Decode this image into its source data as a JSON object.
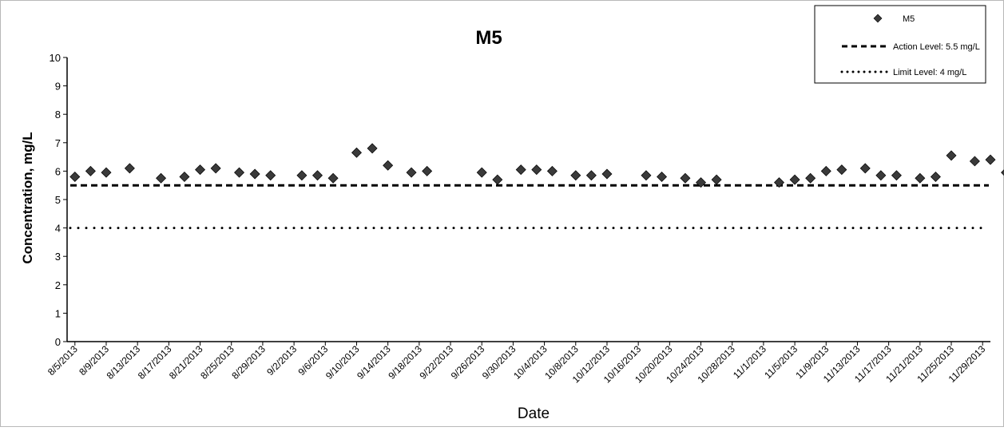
{
  "chart_data": {
    "type": "scatter",
    "title": "M5",
    "xlabel": "Date",
    "ylabel": "Concentration, mg/L",
    "ylim": [
      0,
      10
    ],
    "yticks": [
      "0",
      "1",
      "2",
      "3",
      "4",
      "5",
      "6",
      "7",
      "8",
      "9",
      "10"
    ],
    "xlim": [
      "8/4/2013",
      "11/30/2013"
    ],
    "xtick_labels": [
      "8/5/2013",
      "8/9/2013",
      "8/13/2013",
      "8/17/2013",
      "8/21/2013",
      "8/25/2013",
      "8/29/2013",
      "9/2/2013",
      "9/6/2013",
      "9/10/2013",
      "9/14/2013",
      "9/18/2013",
      "9/22/2013",
      "9/26/2013",
      "9/30/2013",
      "10/4/2013",
      "10/8/2013",
      "10/12/2013",
      "10/16/2013",
      "10/20/2013",
      "10/24/2013",
      "10/28/2013",
      "11/1/2013",
      "11/5/2013",
      "11/9/2013",
      "11/13/2013",
      "11/17/2013",
      "11/21/2013",
      "11/25/2013",
      "11/29/2013"
    ],
    "grid": false,
    "legend_position": "top-right",
    "series": [
      {
        "name": "M5",
        "marker": "diamond",
        "color": "#3a3a3a",
        "points": [
          {
            "x": "8/5/2013",
            "y": 5.8
          },
          {
            "x": "8/7/2013",
            "y": 6.0
          },
          {
            "x": "8/9/2013",
            "y": 5.95
          },
          {
            "x": "8/12/2013",
            "y": 6.1
          },
          {
            "x": "8/16/2013",
            "y": 5.75
          },
          {
            "x": "8/19/2013",
            "y": 5.8
          },
          {
            "x": "8/21/2013",
            "y": 6.05
          },
          {
            "x": "8/23/2013",
            "y": 6.1
          },
          {
            "x": "8/26/2013",
            "y": 5.95
          },
          {
            "x": "8/28/2013",
            "y": 5.9
          },
          {
            "x": "8/30/2013",
            "y": 5.85
          },
          {
            "x": "9/3/2013",
            "y": 5.85
          },
          {
            "x": "9/5/2013",
            "y": 5.85
          },
          {
            "x": "9/7/2013",
            "y": 5.75
          },
          {
            "x": "9/10/2013",
            "y": 6.65
          },
          {
            "x": "9/12/2013",
            "y": 6.8
          },
          {
            "x": "9/14/2013",
            "y": 6.2
          },
          {
            "x": "9/17/2013",
            "y": 5.95
          },
          {
            "x": "9/19/2013",
            "y": 6.0
          },
          {
            "x": "9/26/2013",
            "y": 5.95
          },
          {
            "x": "9/28/2013",
            "y": 5.7
          },
          {
            "x": "10/1/2013",
            "y": 6.05
          },
          {
            "x": "10/3/2013",
            "y": 6.05
          },
          {
            "x": "10/5/2013",
            "y": 6.0
          },
          {
            "x": "10/8/2013",
            "y": 5.85
          },
          {
            "x": "10/10/2013",
            "y": 5.85
          },
          {
            "x": "10/12/2013",
            "y": 5.9
          },
          {
            "x": "10/17/2013",
            "y": 5.85
          },
          {
            "x": "10/19/2013",
            "y": 5.8
          },
          {
            "x": "10/22/2013",
            "y": 5.75
          },
          {
            "x": "10/24/2013",
            "y": 5.6
          },
          {
            "x": "10/26/2013",
            "y": 5.7
          },
          {
            "x": "11/3/2013",
            "y": 5.6
          },
          {
            "x": "11/5/2013",
            "y": 5.7
          },
          {
            "x": "11/7/2013",
            "y": 5.75
          },
          {
            "x": "11/9/2013",
            "y": 6.0
          },
          {
            "x": "11/11/2013",
            "y": 6.05
          },
          {
            "x": "11/14/2013",
            "y": 6.1
          },
          {
            "x": "11/16/2013",
            "y": 5.85
          },
          {
            "x": "11/18/2013",
            "y": 5.85
          },
          {
            "x": "11/21/2013",
            "y": 5.75
          },
          {
            "x": "11/23/2013",
            "y": 5.8
          },
          {
            "x": "11/25/2013",
            "y": 6.55
          },
          {
            "x": "11/28/2013",
            "y": 6.35
          },
          {
            "x": "11/30/2013",
            "y": 6.4
          },
          {
            "x": "12/2/2013",
            "y": 5.95
          }
        ]
      },
      {
        "name": "Action Level: 5.5 mg/L",
        "type": "hline",
        "y": 5.5,
        "style": "dashed",
        "color": "#000000"
      },
      {
        "name": "Limit Level: 4 mg/L",
        "type": "hline",
        "y": 4,
        "style": "dotted",
        "color": "#000000"
      }
    ]
  }
}
